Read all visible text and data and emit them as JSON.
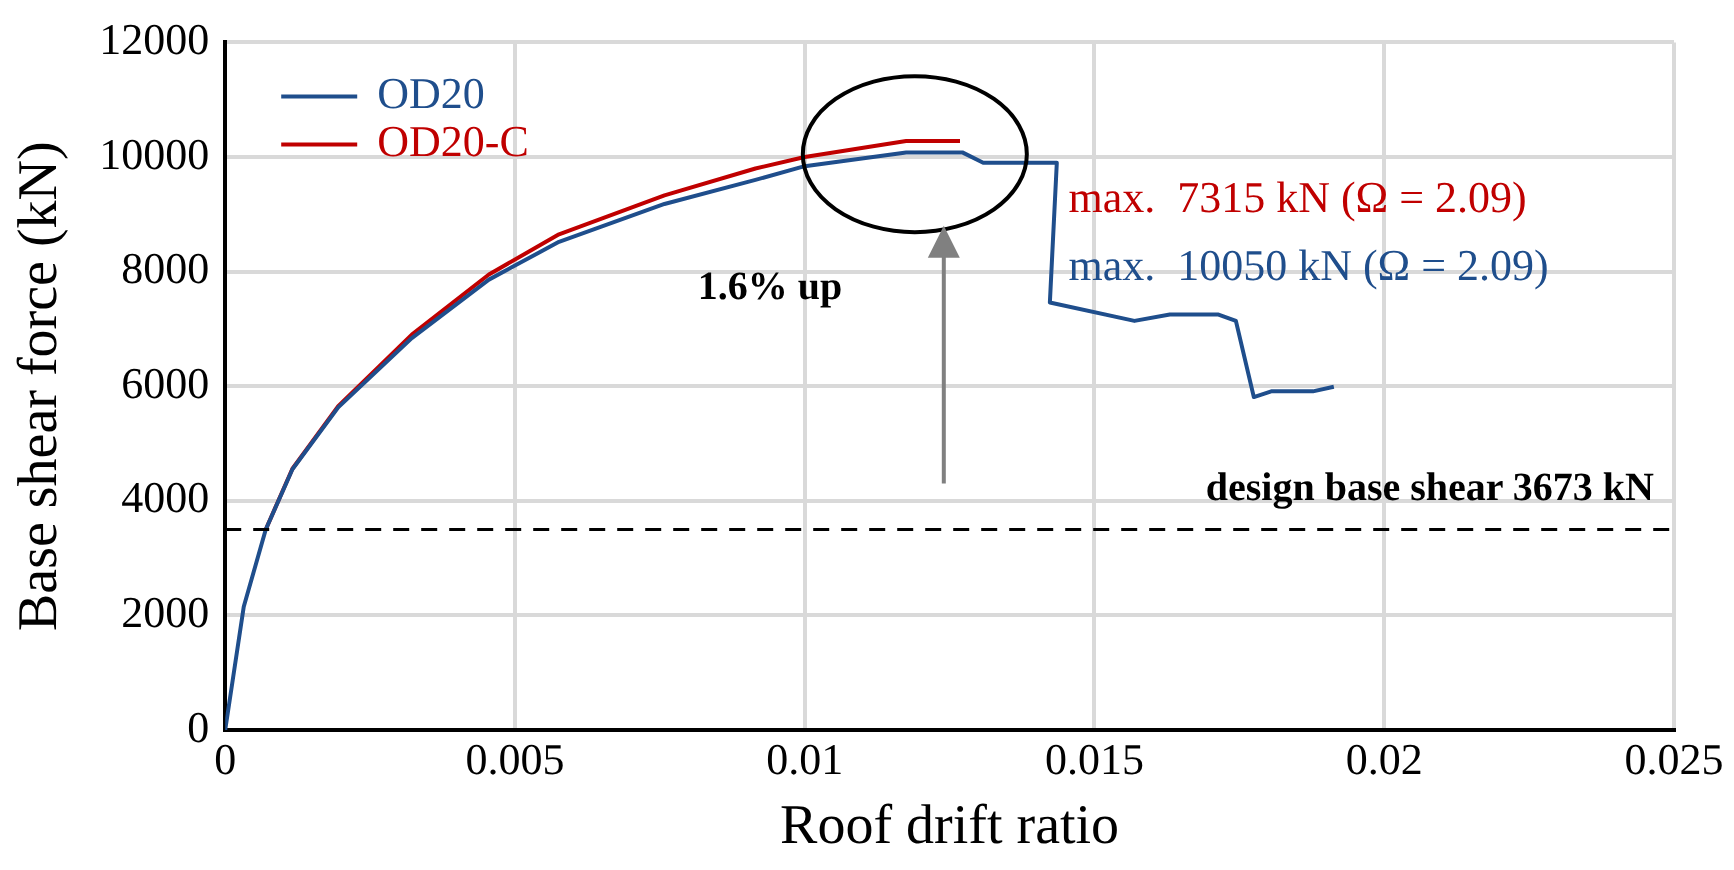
{
  "chart_data": {
    "type": "line",
    "xlabel": "Roof drift ratio",
    "ylabel": "Base shear force (kN)",
    "xlim": [
      0,
      0.025
    ],
    "xticks": [
      0,
      0.005,
      0.01,
      0.015,
      0.02,
      0.025
    ],
    "ylim": [
      0,
      12000
    ],
    "yticks": [
      0,
      2000,
      4000,
      6000,
      8000,
      10000,
      12000
    ],
    "grid": true,
    "legend": "top left",
    "marker": "none",
    "line_style": "solid",
    "series": [
      {
        "name": "OD20",
        "color": "#1f4e8c",
        "x": [
          0,
          0.00032,
          0.0007,
          0.00116,
          0.00195,
          0.00322,
          0.00455,
          0.00576,
          0.00758,
          0.00915,
          0.01,
          0.01175,
          0.01272,
          0.01308,
          0.01435,
          0.01423,
          0.01569,
          0.0163,
          0.01714,
          0.01744,
          0.01775,
          0.01805,
          0.01877,
          0.01913
        ],
        "values": [
          0,
          2150,
          3500,
          4550,
          5630,
          6840,
          7860,
          8520,
          9180,
          9600,
          9840,
          10080,
          10080,
          9900,
          9900,
          7460,
          7140,
          7250,
          7250,
          7140,
          5810,
          5910,
          5910,
          5990
        ]
      },
      {
        "name": "OD20-C",
        "color": "#c00000",
        "x": [
          0.0007,
          0.00116,
          0.00195,
          0.00322,
          0.00455,
          0.00576,
          0.00758,
          0.00915,
          0.01,
          0.01175,
          0.01268
        ],
        "values": [
          3500,
          4560,
          5650,
          6900,
          7950,
          8650,
          9330,
          9800,
          10000,
          10280,
          10280
        ]
      }
    ],
    "ref_lines": [
      {
        "axis": "y",
        "value": 3500,
        "label": "design base shear 3673 kN",
        "color": "#000000",
        "line_style": "dashed"
      }
    ],
    "annotations": [
      "1.6% up",
      "max.  7315 kN (Ω = 2.09)",
      "max.  10050 kN (Ω = 2.09)"
    ]
  }
}
